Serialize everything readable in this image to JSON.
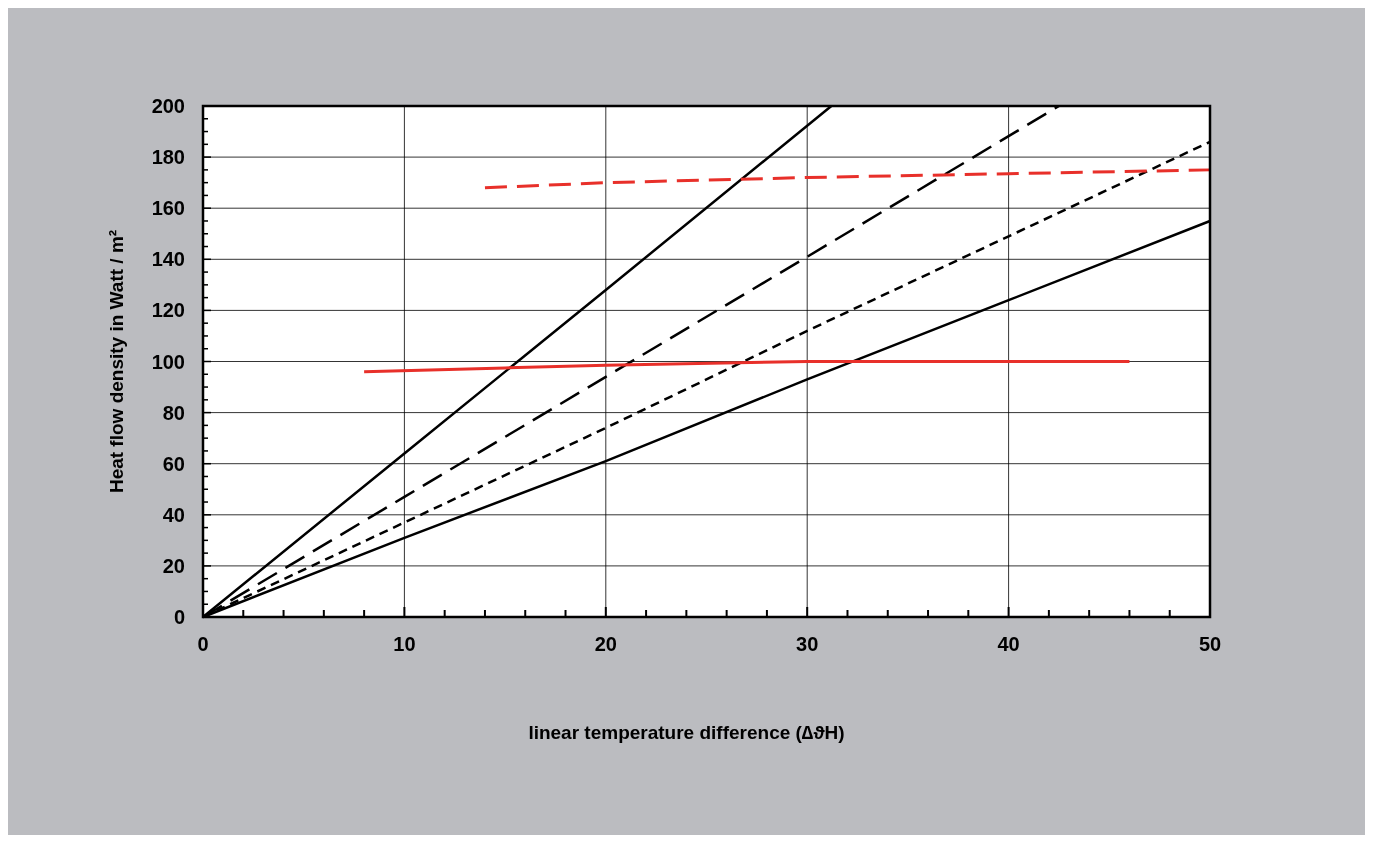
{
  "chart_data": {
    "type": "line",
    "xlabel": "linear temperature difference (∆ϑH)",
    "ylabel": "Heat flow density in Watt / m²",
    "xlim": [
      0,
      50
    ],
    "ylim": [
      0,
      200
    ],
    "xticks": [
      0,
      {
        "value": 2,
        "label": null
      },
      {
        "value": 4,
        "label": null
      },
      {
        "value": 6,
        "label": null
      },
      {
        "value": 8,
        "label": null
      },
      10,
      {
        "value": 12,
        "label": null
      },
      {
        "value": 14,
        "label": null
      },
      {
        "value": 16,
        "label": null
      },
      {
        "value": 18,
        "label": null
      },
      20,
      {
        "value": 22,
        "label": null
      },
      {
        "value": 24,
        "label": null
      },
      {
        "value": 26,
        "label": null
      },
      {
        "value": 28,
        "label": null
      },
      30,
      {
        "value": 32,
        "label": null
      },
      {
        "value": 34,
        "label": null
      },
      {
        "value": 36,
        "label": null
      },
      {
        "value": 38,
        "label": null
      },
      40,
      {
        "value": 42,
        "label": null
      },
      {
        "value": 44,
        "label": null
      },
      {
        "value": 46,
        "label": null
      },
      {
        "value": 48,
        "label": null
      },
      50
    ],
    "yticks": [
      0,
      {
        "value": 5,
        "label": null
      },
      {
        "value": 10,
        "label": null
      },
      {
        "value": 15,
        "label": null
      },
      20,
      {
        "value": 25,
        "label": null
      },
      {
        "value": 30,
        "label": null
      },
      {
        "value": 35,
        "label": null
      },
      40,
      {
        "value": 45,
        "label": null
      },
      {
        "value": 50,
        "label": null
      },
      {
        "value": 55,
        "label": null
      },
      60,
      {
        "value": 65,
        "label": null
      },
      {
        "value": 70,
        "label": null
      },
      {
        "value": 75,
        "label": null
      },
      80,
      {
        "value": 85,
        "label": null
      },
      {
        "value": 90,
        "label": null
      },
      {
        "value": 95,
        "label": null
      },
      100,
      {
        "value": 105,
        "label": null
      },
      {
        "value": 110,
        "label": null
      },
      {
        "value": 115,
        "label": null
      },
      120,
      {
        "value": 125,
        "label": null
      },
      {
        "value": 130,
        "label": null
      },
      {
        "value": 135,
        "label": null
      },
      140,
      {
        "value": 145,
        "label": null
      },
      {
        "value": 150,
        "label": null
      },
      {
        "value": 155,
        "label": null
      },
      160,
      {
        "value": 165,
        "label": null
      },
      {
        "value": 170,
        "label": null
      },
      {
        "value": 175,
        "label": null
      },
      180,
      {
        "value": 185,
        "label": null
      },
      {
        "value": 190,
        "label": null
      },
      {
        "value": 195,
        "label": null
      },
      200
    ],
    "grid": true,
    "marker": "none",
    "series": [
      {
        "color": "#000000",
        "line_style": "solid",
        "x": [
          0,
          10,
          20,
          31.2
        ],
        "values": [
          0,
          64,
          128,
          200
        ]
      },
      {
        "color": "#000000",
        "line_style": "dashed",
        "x": [
          0,
          10,
          20,
          30,
          42.5
        ],
        "values": [
          0,
          47,
          94,
          141,
          200
        ]
      },
      {
        "color": "#000000",
        "line_style": "dotted",
        "x": [
          0,
          10,
          20,
          30,
          40,
          50
        ],
        "values": [
          0,
          37,
          74,
          112,
          149,
          186
        ]
      },
      {
        "color": "#000000",
        "line_style": "solid",
        "x": [
          0,
          10,
          20,
          30,
          40,
          50
        ],
        "values": [
          0,
          31,
          61,
          93,
          124,
          155
        ]
      },
      {
        "color": "#e8302a",
        "line_style": "dashed",
        "x": [
          14,
          20,
          30,
          40,
          50
        ],
        "values": [
          168,
          170,
          172,
          173.5,
          175
        ]
      },
      {
        "color": "#e8302a",
        "line_style": "solid",
        "x": [
          8,
          15,
          20,
          30,
          40,
          46
        ],
        "values": [
          96,
          97.5,
          98.5,
          100,
          100,
          100
        ]
      }
    ]
  }
}
